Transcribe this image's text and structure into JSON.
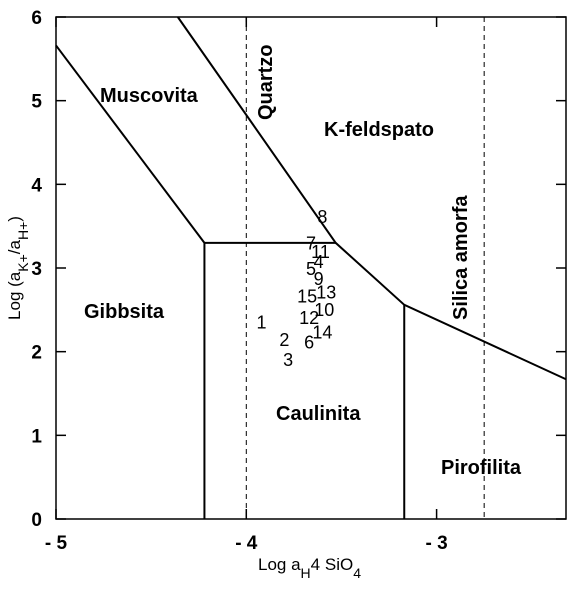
{
  "chart_data": {
    "type": "line",
    "xlabel": [
      {
        "text": "Log a"
      },
      {
        "text": "H",
        "sub": true
      },
      {
        "text": "4"
      },
      {
        "text": " SiO",
        "space": true
      },
      {
        "text": "4",
        "sub": true
      }
    ],
    "ylabel": [
      {
        "text": "Log (a"
      },
      {
        "text": "K+",
        "sub": true
      },
      {
        "text": "/a"
      },
      {
        "text": "H+",
        "sub": true
      },
      {
        "text": ")"
      }
    ],
    "xlim": [
      -5,
      -2.32
    ],
    "ylim": [
      0,
      6
    ],
    "xticks": [
      {
        "value": -5,
        "label": "- 5"
      },
      {
        "value": -4,
        "label": "- 4"
      },
      {
        "value": -3,
        "label": "- 3"
      }
    ],
    "yticks": [
      0,
      1,
      2,
      3,
      4,
      5,
      6
    ],
    "color": "#000000",
    "series": [
      {
        "x": [
          -5,
          -4.22
        ],
        "values": [
          5.66,
          3.3
        ]
      },
      {
        "x": [
          -4.22,
          -4.22
        ],
        "values": [
          3.3,
          0
        ]
      },
      {
        "x": [
          -4.22,
          -3.53
        ],
        "values": [
          3.3,
          3.3
        ]
      },
      {
        "x": [
          -4.36,
          -3.53,
          -3.17,
          -2.32
        ],
        "values": [
          6,
          3.3,
          2.56,
          1.67
        ]
      },
      {
        "x": [
          -3.17,
          -3.17
        ],
        "values": [
          2.56,
          0
        ]
      }
    ],
    "dashed_x": [
      -4.0,
      -2.75
    ],
    "regions": [
      "Muscovita",
      "Quartzo",
      "K-feldspato",
      "Silica amorfa",
      "Gibbsita",
      "Caulinita",
      "Pirofilita"
    ],
    "points": {
      "labels": [
        "1",
        "2",
        "3",
        "4",
        "5",
        "6",
        "7",
        "8",
        "9",
        "10",
        "11",
        "12",
        "13",
        "14",
        "15"
      ],
      "x": [
        -3.92,
        -3.8,
        -3.78,
        -3.62,
        -3.66,
        -3.67,
        -3.66,
        -3.6,
        -3.62,
        -3.59,
        -3.61,
        -3.67,
        -3.58,
        -3.6,
        -3.68
      ],
      "values": [
        2.35,
        2.14,
        1.9,
        3.07,
        2.99,
        2.11,
        3.29,
        3.61,
        2.87,
        2.5,
        3.19,
        2.4,
        2.71,
        2.23,
        2.66
      ]
    }
  }
}
